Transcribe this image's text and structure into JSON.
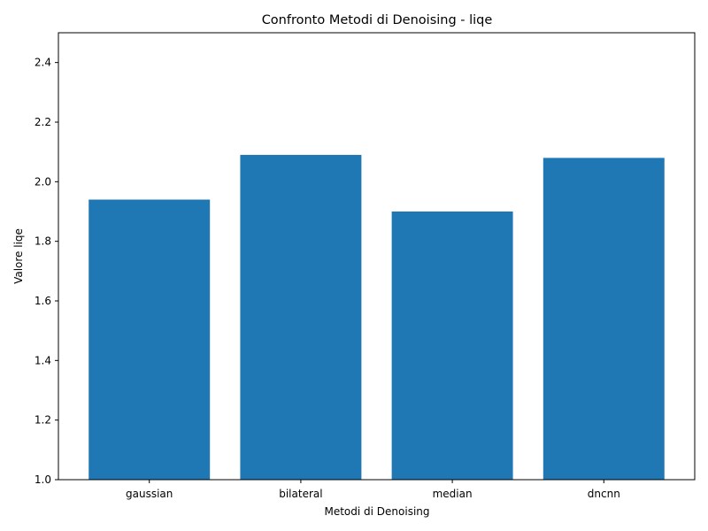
{
  "chart_data": {
    "type": "bar",
    "title": "Confronto Metodi di Denoising - liqe",
    "xlabel": "Metodi di Denoising",
    "ylabel": "Valore liqe",
    "categories": [
      "gaussian",
      "bilateral",
      "median",
      "dncnn"
    ],
    "values": [
      1.94,
      2.09,
      1.9,
      2.08
    ],
    "ylim": [
      1.0,
      2.5
    ],
    "yticks": [
      1.0,
      1.2,
      1.4,
      1.6,
      1.8,
      2.0,
      2.2,
      2.4
    ],
    "bar_color": "#1f77b4",
    "grid": false,
    "legend": "none"
  }
}
